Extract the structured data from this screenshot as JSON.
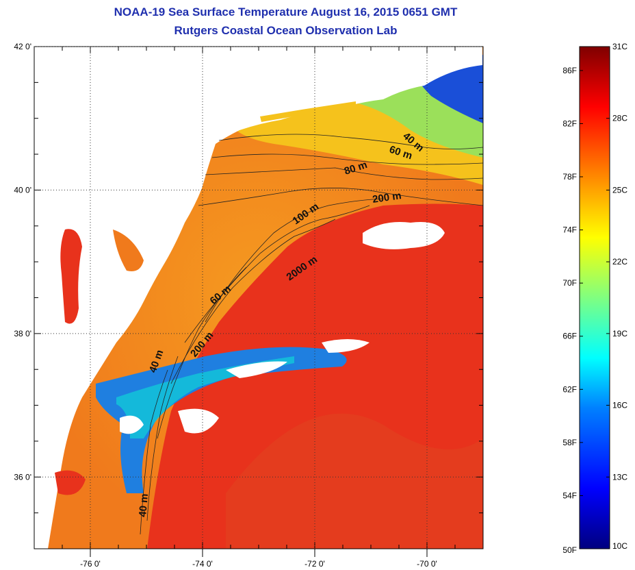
{
  "title": {
    "line1": "NOAA-19 Sea Surface Temperature August 16, 2015 0651 GMT",
    "line2": "Rutgers Coastal Ocean Observation Lab"
  },
  "axes": {
    "lat_ticks": [
      {
        "value": 42,
        "label": "42 0'"
      },
      {
        "value": 40,
        "label": "40 0'"
      },
      {
        "value": 38,
        "label": "38 0'"
      },
      {
        "value": 36,
        "label": "36 0'"
      }
    ],
    "lon_ticks": [
      {
        "value": -76,
        "label": "-76 0'"
      },
      {
        "value": -74,
        "label": "-74 0'"
      },
      {
        "value": -72,
        "label": "-72 0'"
      },
      {
        "value": -70,
        "label": "-70 0'"
      }
    ],
    "lon_range": [
      -77,
      -69
    ],
    "lat_range": [
      35,
      42
    ],
    "grid": "dotted"
  },
  "contours": [
    {
      "label": "40 m"
    },
    {
      "label": "60 m"
    },
    {
      "label": "80 m"
    },
    {
      "label": "200 m"
    },
    {
      "label": "100 m"
    },
    {
      "label": "2000 m"
    },
    {
      "label": "60 m"
    },
    {
      "label": "200 m"
    },
    {
      "label": "40 m"
    },
    {
      "label": "40 m"
    }
  ],
  "colorbar": {
    "range_c": [
      10,
      31
    ],
    "c_labels": [
      "31C",
      "28C",
      "25C",
      "22C",
      "19C",
      "16C",
      "13C",
      "10C"
    ],
    "f_labels": [
      "86F",
      "82F",
      "78F",
      "74F",
      "70F",
      "66F",
      "62F",
      "58F",
      "54F",
      "50F"
    ]
  },
  "colors": {
    "title": "#1f2fae",
    "warm": "#e8321c",
    "shelf": "#f07a1c",
    "cold": "#1a4fd8",
    "land": "#ffffff"
  }
}
